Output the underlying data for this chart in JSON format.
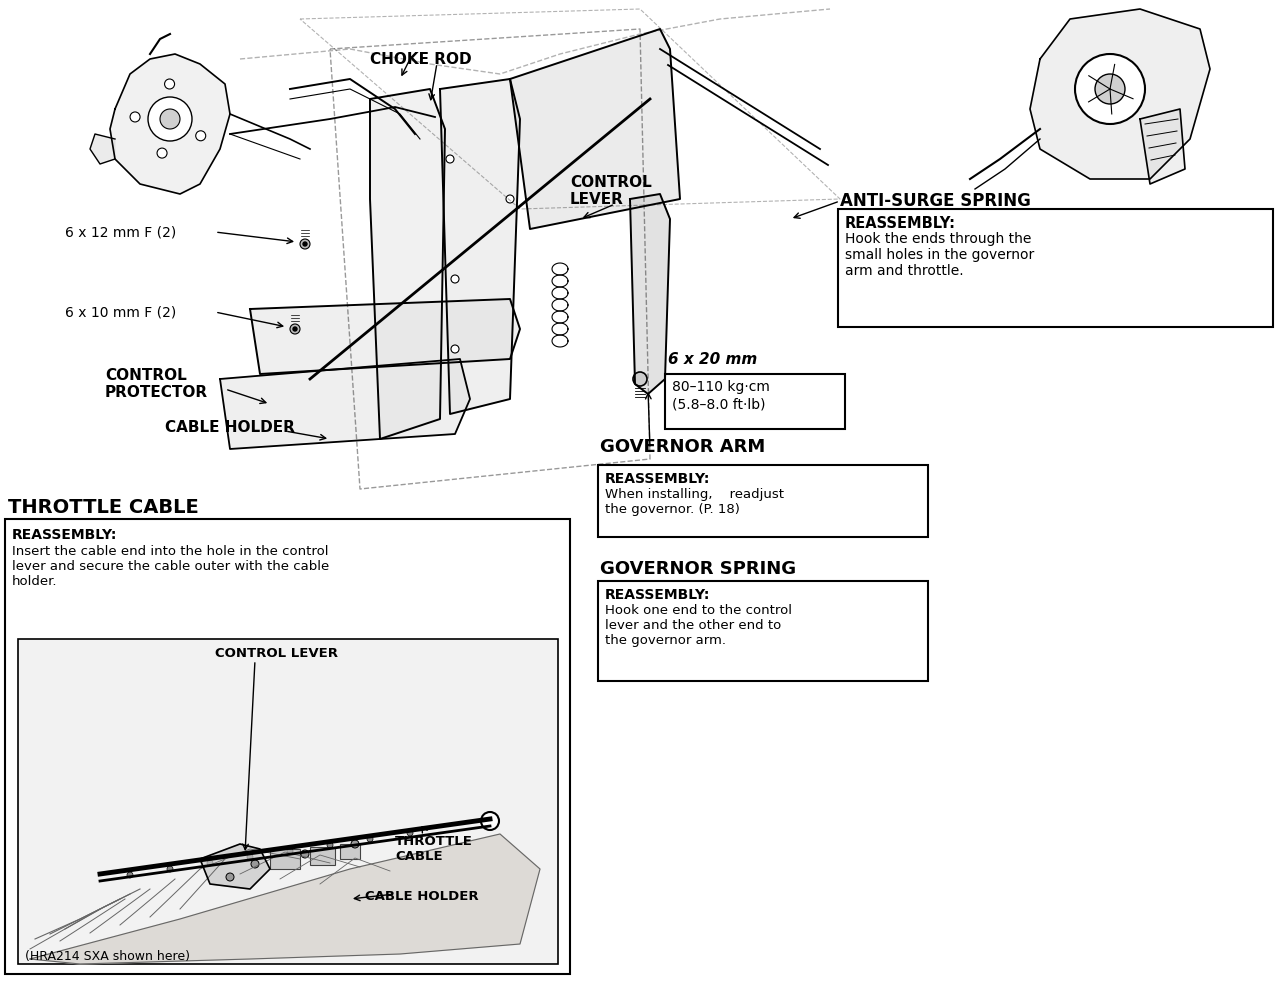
{
  "background_color": "#ffffff",
  "fig_width": 12.8,
  "fig_height": 9.87,
  "labels": {
    "choke_rod": "CHOKE ROD",
    "control_lever_line1": "CONTROL",
    "control_lever_line2": "LEVER",
    "anti_surge_spring": "ANTI-SURGE SPRING",
    "anti_surge_reassembly_title": "REASSEMBLY:",
    "anti_surge_reassembly_body": "Hook the ends through the\nsmall holes in the governor\narm and throttle.",
    "bolts_6x12": "6 x 12 mm F (2)",
    "bolts_6x10": "6 x 10 mm F (2)",
    "control_protector_line1": "CONTROL",
    "control_protector_line2": "PROTECTOR",
    "cable_holder_main": "CABLE HOLDER",
    "bolt_6x20": "6 x 20 mm",
    "torque_line1": "80–110 kg·cm",
    "torque_line2": "(5.8–8.0 ft·lb)",
    "governor_arm": "GOVERNOR ARM",
    "governor_arm_reassembly_title": "REASSEMBLY:",
    "governor_arm_reassembly_body": "When installing,    readjust\nthe governor. (P. 18)",
    "governor_spring": "GOVERNOR SPRING",
    "governor_spring_reassembly_title": "REASSEMBLY:",
    "governor_spring_reassembly_body": "Hook one end to the control\nlever and the other end to\nthe governor arm.",
    "throttle_cable_header": "THROTTLE CABLE",
    "throttle_reassembly_title": "REASSEMBLY:",
    "throttle_reassembly_body": "Insert the cable end into the hole in the control\nlever and secure the cable outer with the cable\nholder.",
    "inset_control_lever": "CONTROL LEVER",
    "inset_throttle_cable_line1": "THROTTLE",
    "inset_throttle_cable_line2": "CABLE",
    "inset_cable_holder": "CABLE HOLDER",
    "inset_caption": "(HRA214 SXA shown here)"
  },
  "colors": {
    "black": "#000000",
    "white": "#ffffff",
    "near_white": "#f8f8f8",
    "light_gray": "#c8c8c8",
    "mid_gray": "#888888",
    "dark_gray": "#444444",
    "sketch_gray": "#666666"
  }
}
